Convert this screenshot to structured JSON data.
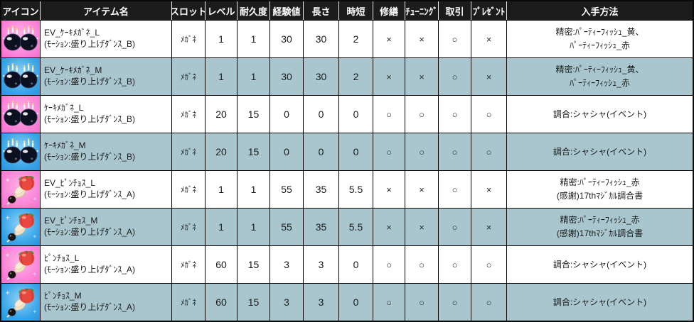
{
  "table": {
    "headers": [
      "アイコン",
      "アイテム名",
      "スロット",
      "レベル",
      "耐久度",
      "経験値",
      "長さ",
      "時短",
      "修繕",
      "ﾁｭｰﾆﾝｸﾞ",
      "取引",
      "ﾌﾟﾚｾﾞﾝﾄ",
      "入手方法"
    ],
    "rows": [
      {
        "icon": {
          "type": "cake-glasses",
          "variant": "pink"
        },
        "name": "EV_ｹｰｷﾒｶﾞﾈ_L",
        "motion": "(ﾓｰｼｮﾝ:盛り上げﾀﾞﾝｽ_B)",
        "slot": "ﾒｶﾞﾈ",
        "level": "1",
        "durability": "1",
        "exp": "30",
        "length": "30",
        "time": "2",
        "repair": "×",
        "tuning": "×",
        "trade": "○",
        "present": "×",
        "obtain": "精密:ﾊﾟｰﾃｨｰﾌｨｯｼｭ_黄、\nﾊﾟｰﾃｨｰﾌｨｯｼｭ_赤"
      },
      {
        "icon": {
          "type": "cake-glasses",
          "variant": "blue"
        },
        "name": "EV_ｹｰｷﾒｶﾞﾈ_M",
        "motion": "(ﾓｰｼｮﾝ:盛り上げﾀﾞﾝｽ_B)",
        "slot": "ﾒｶﾞﾈ",
        "level": "1",
        "durability": "1",
        "exp": "30",
        "length": "30",
        "time": "2",
        "repair": "×",
        "tuning": "×",
        "trade": "○",
        "present": "×",
        "obtain": "精密:ﾊﾟｰﾃｨｰﾌｨｯｼｭ_黄、\nﾊﾟｰﾃｨｰﾌｨｯｼｭ_赤"
      },
      {
        "icon": {
          "type": "cake-glasses",
          "variant": "pink"
        },
        "name": "ｹｰｷﾒｶﾞﾈ_L",
        "motion": "(ﾓｰｼｮﾝ:盛り上げﾀﾞﾝｽ_B)",
        "slot": "ﾒｶﾞﾈ",
        "level": "20",
        "durability": "15",
        "exp": "0",
        "length": "0",
        "time": "0",
        "repair": "○",
        "tuning": "○",
        "trade": "○",
        "present": "○",
        "obtain": "調合:シャシャ(イベント)"
      },
      {
        "icon": {
          "type": "cake-glasses",
          "variant": "blue"
        },
        "name": "ｹｰｷﾒｶﾞﾈ_M",
        "motion": "(ﾓｰｼｮﾝ:盛り上げﾀﾞﾝｽ_B)",
        "slot": "ﾒｶﾞﾈ",
        "level": "20",
        "durability": "15",
        "exp": "0",
        "length": "0",
        "time": "0",
        "repair": "○",
        "tuning": "○",
        "trade": "○",
        "present": "○",
        "obtain": "調合:シャシャ(イベント)"
      },
      {
        "icon": {
          "type": "pinchos",
          "variant": "pink"
        },
        "name": "EV_ﾋﾟﾝﾁｮｽ_L",
        "motion": "(ﾓｰｼｮﾝ:盛り上げﾀﾞﾝｽ_A)",
        "slot": "ﾒｶﾞﾈ",
        "level": "1",
        "durability": "1",
        "exp": "55",
        "length": "35",
        "time": "5.5",
        "repair": "×",
        "tuning": "×",
        "trade": "○",
        "present": "×",
        "obtain": "精密:ﾊﾟｰﾃｨｰﾌｨｯｼｭ_赤\n(感謝)17thﾏｼﾞｶﾙ調合書"
      },
      {
        "icon": {
          "type": "pinchos",
          "variant": "blue"
        },
        "name": "EV_ﾋﾟﾝﾁｮｽ_M",
        "motion": "(ﾓｰｼｮﾝ:盛り上げﾀﾞﾝｽ_A)",
        "slot": "ﾒｶﾞﾈ",
        "level": "1",
        "durability": "1",
        "exp": "55",
        "length": "35",
        "time": "5.5",
        "repair": "×",
        "tuning": "×",
        "trade": "○",
        "present": "×",
        "obtain": "精密:ﾊﾟｰﾃｨｰﾌｨｯｼｭ_赤\n(感謝)17thﾏｼﾞｶﾙ調合書"
      },
      {
        "icon": {
          "type": "pinchos",
          "variant": "pink"
        },
        "name": "ﾋﾟﾝﾁｮｽ_L",
        "motion": "(ﾓｰｼｮﾝ:盛り上げﾀﾞﾝｽ_A)",
        "slot": "ﾒｶﾞﾈ",
        "level": "60",
        "durability": "15",
        "exp": "3",
        "length": "3",
        "time": "0",
        "repair": "○",
        "tuning": "○",
        "trade": "○",
        "present": "○",
        "obtain": "調合:シャシャ(イベント)"
      },
      {
        "icon": {
          "type": "pinchos",
          "variant": "blue"
        },
        "name": "ﾋﾟﾝﾁｮｽ_M",
        "motion": "(ﾓｰｼｮﾝ:盛り上げﾀﾞﾝｽ_A)",
        "slot": "ﾒｶﾞﾈ",
        "level": "60",
        "durability": "15",
        "exp": "3",
        "length": "3",
        "time": "0",
        "repair": "○",
        "tuning": "○",
        "trade": "○",
        "present": "○",
        "obtain": "調合:シャシャ(イベント)"
      }
    ]
  },
  "colors": {
    "header_bg": "#1c1c1c",
    "header_text": "#ffffff",
    "row_alt_bg": "#a9c6ce",
    "row_bg": "#ffffff",
    "icon_pink": "#fb84d8",
    "icon_blue": "#39a5e8",
    "grid_line": "#000000"
  }
}
